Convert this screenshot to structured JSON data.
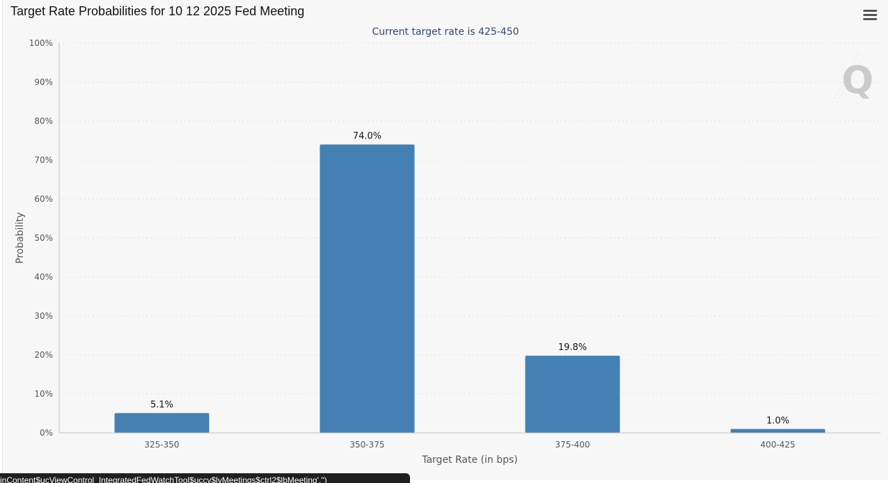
{
  "page": {
    "title": "Target Rate Probabilities for 10 12 2025 Fed Meeting",
    "status_url": "inContent$ucViewControl_IntegratedFedWatchTool$uccv$lvMeetings$ctrl2$lbMeeting','')"
  },
  "icons": {
    "menu": "hamburger-menu-icon",
    "watermark": "q-logo-icon"
  },
  "watermark_letter": "Q",
  "chart_data": {
    "type": "bar",
    "title": "",
    "subtitle": "Current target rate is 425-450",
    "xlabel": "Target Rate (in bps)",
    "ylabel": "Probability",
    "categories": [
      "325-350",
      "350-375",
      "375-400",
      "400-425"
    ],
    "values": [
      5.1,
      74.0,
      19.8,
      1.0
    ],
    "data_labels": [
      "5.1%",
      "74.0%",
      "19.8%",
      "1.0%"
    ],
    "ylim": [
      0,
      100
    ],
    "yticks": [
      0,
      10,
      20,
      30,
      40,
      50,
      60,
      70,
      80,
      90,
      100
    ],
    "ytick_labels": [
      "0%",
      "10%",
      "20%",
      "30%",
      "40%",
      "50%",
      "60%",
      "70%",
      "80%",
      "90%",
      "100%"
    ],
    "grid": true,
    "legend": "none",
    "colors": {
      "bar": "#4480b4",
      "subtitle": "#34476b",
      "axis": "#c2c2c2",
      "grid": "#c9c9c9",
      "text": "#555555",
      "data_label": "#111111"
    }
  }
}
